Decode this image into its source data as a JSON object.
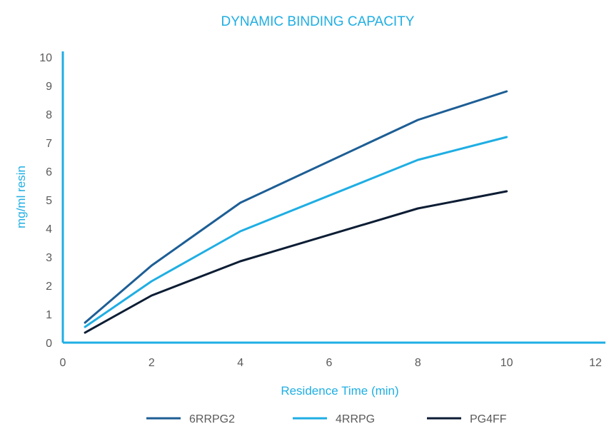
{
  "chart_data": {
    "type": "line",
    "title": "DYNAMIC BINDING CAPACITY",
    "xlabel": "Residence Time (min)",
    "ylabel": "mg/ml resin",
    "xlim": [
      0,
      12
    ],
    "ylim": [
      0,
      10
    ],
    "x_ticks": [
      "0",
      "2",
      "4",
      "6",
      "8",
      "10",
      "12"
    ],
    "y_ticks": [
      "0",
      "1",
      "2",
      "3",
      "4",
      "5",
      "6",
      "7",
      "8",
      "9",
      "10"
    ],
    "grid": false,
    "legend_position": "bottom",
    "series": [
      {
        "name": "6RRPG2",
        "color": "#1d5e95",
        "points": [
          [
            0.5,
            0.7
          ],
          [
            2,
            2.7
          ],
          [
            4,
            4.9
          ],
          [
            8,
            7.8
          ],
          [
            10,
            8.8
          ]
        ]
      },
      {
        "name": "4RRPG",
        "color": "#1faee3",
        "points": [
          [
            0.5,
            0.55
          ],
          [
            2,
            2.15
          ],
          [
            4,
            3.9
          ],
          [
            8,
            6.4
          ],
          [
            10,
            7.2
          ]
        ]
      },
      {
        "name": "PG4FF",
        "color": "#0c1d34",
        "points": [
          [
            0.5,
            0.35
          ],
          [
            2,
            1.65
          ],
          [
            4,
            2.85
          ],
          [
            8,
            4.7
          ],
          [
            10,
            5.3
          ]
        ]
      }
    ]
  },
  "colors": {
    "accent": "#1faee3",
    "axis": "#1faee3",
    "tick_text": "#5a5a5a"
  }
}
